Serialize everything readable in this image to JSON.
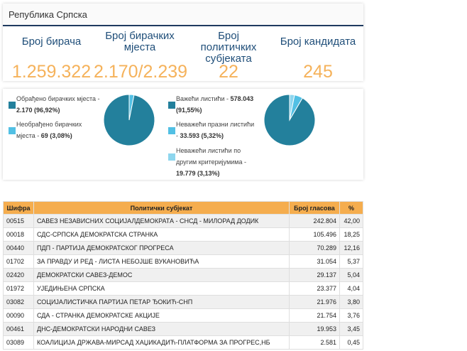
{
  "header": {
    "title": "Република Српска"
  },
  "stats": [
    {
      "label": "Број бирача",
      "value": "1.259.322"
    },
    {
      "label": "Број бирачких мјеста",
      "value": "2.170/2.239"
    },
    {
      "label": "Број политичких субјеката",
      "value": "22"
    },
    {
      "label": "Број кандидата",
      "value": "245"
    }
  ],
  "pie1": {
    "legend": [
      {
        "label": "Обрађено бирачких мјеста -",
        "value": "2.170 (96,92%)",
        "color": "#23809c"
      },
      {
        "label": "Необрађено бирачких мјеста -",
        "value": "69 (3,08%)",
        "color": "#52c0e4"
      }
    ],
    "slices": [
      {
        "share": 96.92,
        "color": "#23809c"
      },
      {
        "share": 3.08,
        "color": "#52c0e4"
      }
    ]
  },
  "pie2": {
    "legend": [
      {
        "label": "Важећи листићи -",
        "value": "578.043 (91,55%)",
        "color": "#23809c"
      },
      {
        "label": "Неважећи празни листићи -",
        "value": "33.593 (5,32%)",
        "color": "#52c0e4"
      },
      {
        "label": "Неважећи листићи по другим критеријумима -",
        "value": "19.779 (3,13%)",
        "color": "#8ed6ee"
      }
    ],
    "slices": [
      {
        "share": 91.55,
        "color": "#23809c"
      },
      {
        "share": 5.32,
        "color": "#52c0e4"
      },
      {
        "share": 3.13,
        "color": "#8ed6ee"
      }
    ]
  },
  "table": {
    "headers": [
      "Шифра",
      "Политички субјекат",
      "Број гласова",
      "%"
    ],
    "rows": [
      [
        "00515",
        "САВЕЗ НЕЗАВИСНИХ СОЦИЈАЛДЕМОКРАТА - СНСД - МИЛОРАД ДОДИК",
        "242.804",
        "42,00"
      ],
      [
        "00018",
        "СДС-СРПСКА ДЕМОКРАТСКА СТРАНКА",
        "105.496",
        "18,25"
      ],
      [
        "00440",
        "ПДП - ПАРТИЈА ДЕМОКРАТСКОГ ПРОГРЕСА",
        "70.289",
        "12,16"
      ],
      [
        "01702",
        "ЗА ПРАВДУ И РЕД - ЛИСТА НЕБОЈШЕ ВУКАНОВИЋА",
        "31.054",
        "5,37"
      ],
      [
        "02420",
        "ДЕМОКРАТСКИ САВЕЗ-ДЕМОС",
        "29.137",
        "5,04"
      ],
      [
        "01972",
        "УЈЕДИЊЕНА СРПСКА",
        "23.377",
        "4,04"
      ],
      [
        "03082",
        "СОЦИЈАЛИСТИЧКА ПАРТИЈА ПЕТАР ЂОКИЋ-СНП",
        "21.976",
        "3,80"
      ],
      [
        "00090",
        "СДА - СТРАНКА ДЕМОКРАТСКЕ АКЦИЈЕ",
        "21.754",
        "3,76"
      ],
      [
        "00461",
        "ДНС-ДЕМОКРАТСКИ НАРОДНИ САВЕЗ",
        "19.953",
        "3,45"
      ],
      [
        "03089",
        "КОАЛИЦИЈА ДРЖАВА-МИРСАД ХАЏИКАДИЋ-ПЛАТФОРМА ЗА ПРОГРЕС,НБ",
        "2.581",
        "0,45"
      ]
    ]
  }
}
